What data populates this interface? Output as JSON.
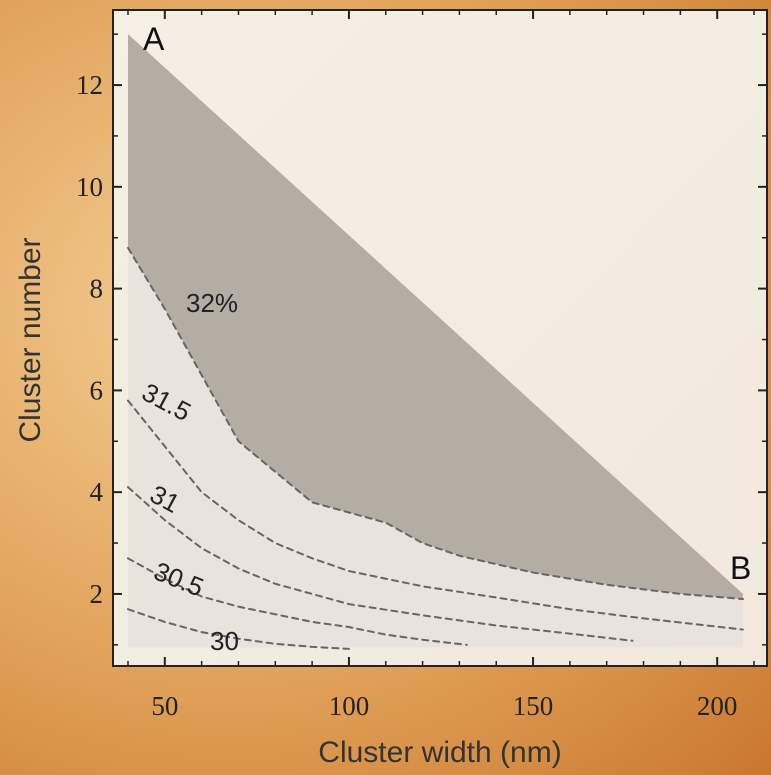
{
  "chart_data": {
    "type": "area",
    "xlabel": "Cluster width (nm)",
    "ylabel": "Cluster number",
    "xlim": [
      40,
      210
    ],
    "ylim": [
      0.8,
      13.2
    ],
    "xticks": [
      50,
      100,
      150,
      200
    ],
    "yticks": [
      2,
      4,
      6,
      8,
      10,
      12
    ],
    "grid": false,
    "region": {
      "name": "32%",
      "boundary": [
        {
          "x": 40,
          "y": 13.0
        },
        {
          "x": 207,
          "y": 2.0
        }
      ]
    },
    "contours": [
      {
        "label": "32%",
        "points": [
          [
            40,
            8.8
          ],
          [
            50,
            7.6
          ],
          [
            60,
            6.3
          ],
          [
            70,
            5.0
          ],
          [
            80,
            4.4
          ],
          [
            90,
            3.8
          ],
          [
            100,
            3.6
          ],
          [
            110,
            3.4
          ],
          [
            120,
            3.0
          ],
          [
            130,
            2.75
          ],
          [
            150,
            2.42
          ],
          [
            170,
            2.18
          ],
          [
            190,
            2.0
          ],
          [
            207,
            1.9
          ]
        ]
      },
      {
        "label": "31.5",
        "points": [
          [
            40,
            5.8
          ],
          [
            50,
            4.9
          ],
          [
            60,
            4.0
          ],
          [
            70,
            3.45
          ],
          [
            80,
            3.0
          ],
          [
            90,
            2.7
          ],
          [
            100,
            2.45
          ],
          [
            120,
            2.15
          ],
          [
            140,
            1.93
          ],
          [
            160,
            1.7
          ],
          [
            180,
            1.52
          ],
          [
            207,
            1.3
          ]
        ]
      },
      {
        "label": "31",
        "points": [
          [
            40,
            4.1
          ],
          [
            50,
            3.45
          ],
          [
            60,
            2.9
          ],
          [
            70,
            2.5
          ],
          [
            80,
            2.2
          ],
          [
            90,
            2.0
          ],
          [
            100,
            1.8
          ],
          [
            120,
            1.58
          ],
          [
            140,
            1.38
          ],
          [
            160,
            1.22
          ],
          [
            177,
            1.08
          ]
        ]
      },
      {
        "label": "30.5",
        "points": [
          [
            40,
            2.7
          ],
          [
            50,
            2.3
          ],
          [
            60,
            1.95
          ],
          [
            70,
            1.75
          ],
          [
            80,
            1.6
          ],
          [
            90,
            1.45
          ],
          [
            100,
            1.35
          ],
          [
            110,
            1.2
          ],
          [
            120,
            1.1
          ],
          [
            132,
            1.0
          ]
        ]
      },
      {
        "label": "30",
        "points": [
          [
            40,
            1.7
          ],
          [
            50,
            1.45
          ],
          [
            60,
            1.25
          ],
          [
            70,
            1.12
          ],
          [
            80,
            1.02
          ],
          [
            90,
            0.96
          ],
          [
            100,
            0.92
          ]
        ]
      }
    ],
    "annotations": [
      {
        "text": "A",
        "x": 46,
        "y": 12.75
      },
      {
        "text": "B",
        "x": 202,
        "y": 2.3
      }
    ]
  },
  "labels": {
    "xlabel": "Cluster width (nm)",
    "ylabel": "Cluster number",
    "contour_32": "32%",
    "contour_315": "31.5",
    "contour_31": "31",
    "contour_305": "30.5",
    "contour_30": "30",
    "corner_a": "A",
    "corner_b": "B"
  },
  "colors": {
    "plot_background": "#f4ede2",
    "gray_region": "#b3ada4",
    "light_region": "#e8e3dc",
    "frame": "#222222",
    "contour": "#666666"
  }
}
